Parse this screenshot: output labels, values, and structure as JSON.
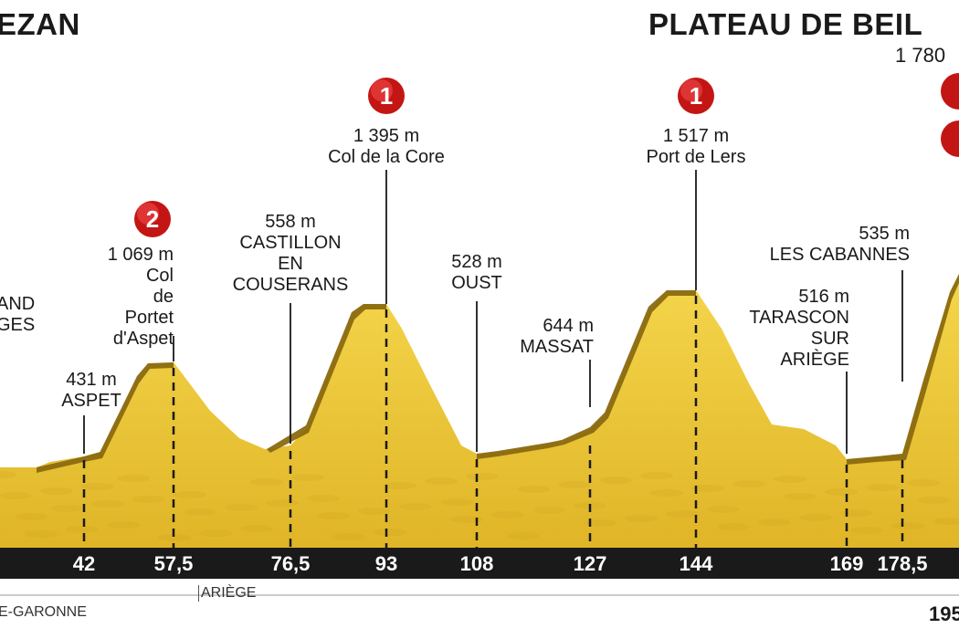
{
  "stage": {
    "start_name": "EZAN",
    "finish_name": "PLATEAU DE BEIL",
    "finish_elevation": "1 780",
    "distance_end": "195"
  },
  "colors": {
    "terrain": "#e2b82a",
    "terrain_light": "#f1d24a",
    "slope_dark": "#8a6a10",
    "axis": "#1a1a1a",
    "climb_badge": "#d81e1e"
  },
  "waypoints": [
    {
      "km": 42,
      "km_label": "42",
      "elevation": "431 m",
      "name": "ASPET"
    },
    {
      "km": 57.5,
      "km_label": "57,5",
      "elevation": "1 069 m",
      "name": "Col\nde Portet\nd'Aspet",
      "category": "2"
    },
    {
      "km": 76.5,
      "km_label": "76,5",
      "elevation": "558 m",
      "name": "CASTILLON\nEN\nCOUSERANS"
    },
    {
      "km": 93,
      "km_label": "93",
      "elevation": "1 395 m",
      "name": "Col de la Core",
      "category": "1"
    },
    {
      "km": 108,
      "km_label": "108",
      "elevation": "528 m",
      "name": "OUST"
    },
    {
      "km": 127,
      "km_label": "127",
      "elevation": "644 m",
      "name": "MASSAT"
    },
    {
      "km": 144,
      "km_label": "144",
      "elevation": "1 517 m",
      "name": "Port de Lers",
      "category": "1"
    },
    {
      "km": 169,
      "km_label": "169",
      "elevation": "516 m",
      "name": "TARASCON\nSUR\nARIÈGE"
    },
    {
      "km": 178.5,
      "km_label": "178,5",
      "elevation": "535 m",
      "name": "LES CABANNES"
    }
  ],
  "partial_label": "AND\nGES",
  "departments": [
    "E-GARONNE",
    "ARIÈGE"
  ]
}
